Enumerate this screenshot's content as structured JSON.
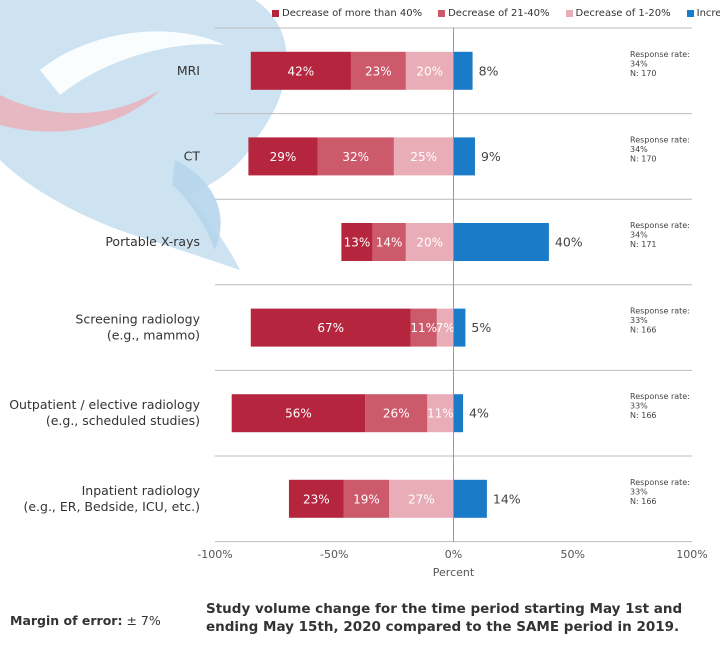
{
  "chart_data": {
    "type": "bar",
    "orientation": "horizontal",
    "stacked": "diverging",
    "xlabel": "Percent",
    "xlim": [
      -100,
      100
    ],
    "x_ticks": [
      "-100%",
      "-50%",
      "0%",
      "50%",
      "100%"
    ],
    "x_tick_values": [
      -100,
      -50,
      0,
      50,
      100
    ],
    "categories": [
      [
        "MRI"
      ],
      [
        "CT"
      ],
      [
        "Portable X-rays"
      ],
      [
        "Screening radiology",
        "(e.g., mammo)"
      ],
      [
        "Outpatient / elective radiology",
        "(e.g., scheduled studies)"
      ],
      [
        "Inpatient radiology",
        "(e.g., ER, Bedside, ICU, etc.)"
      ]
    ],
    "series": [
      {
        "name": "Decrease of more than 40%",
        "color": "#b5253d",
        "direction": "negative",
        "values": [
          42,
          29,
          13,
          67,
          56,
          23
        ]
      },
      {
        "name": "Decrease of 21-40%",
        "color": "#cd5a6b",
        "direction": "negative",
        "values": [
          23,
          32,
          14,
          11,
          26,
          19
        ]
      },
      {
        "name": "Decrease of 1-20%",
        "color": "#e8adb6",
        "direction": "negative",
        "values": [
          20,
          25,
          20,
          7,
          11,
          27
        ]
      },
      {
        "name": "Increase",
        "color": "#1a7bc9",
        "direction": "positive",
        "values": [
          8,
          9,
          40,
          5,
          4,
          14
        ]
      }
    ],
    "response_info": [
      [
        "Response rate:",
        "34%",
        "N: 170"
      ],
      [
        "Response rate:",
        "34%",
        "N: 170"
      ],
      [
        "Response rate:",
        "34%",
        "N: 171"
      ],
      [
        "Response rate:",
        "33%",
        "N: 166"
      ],
      [
        "Response rate:",
        "33%",
        "N: 166"
      ],
      [
        "Response rate:",
        "33%",
        "N: 166"
      ]
    ],
    "grid": false,
    "legend_position": "top-right"
  },
  "footer": {
    "margin_label": "Margin of error:",
    "margin_value": "± 7%",
    "caption_line1": "Study volume change for the time period starting May 1st and",
    "caption_line2": "ending May 15th, 2020 compared to the SAME period in 2019."
  },
  "colors": {
    "background_graphic": "#c4def0",
    "background_swoosh": "#e8b3bd"
  }
}
